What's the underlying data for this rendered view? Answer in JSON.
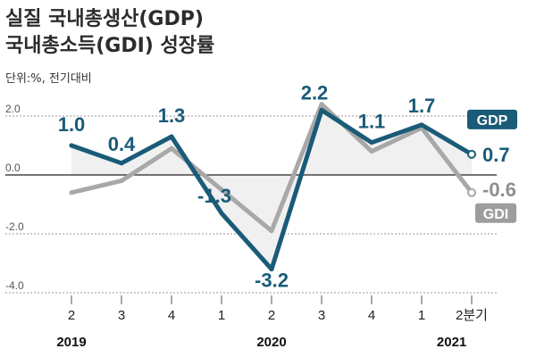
{
  "chart_data": {
    "type": "line",
    "title": [
      "실질 국내총생산(GDP)",
      "국내총소득(GDI) 성장률"
    ],
    "unit_label": "단위:%, 전기대비",
    "categories": [
      "2",
      "3",
      "4",
      "1",
      "2",
      "3",
      "4",
      "1",
      "2분기"
    ],
    "year_labels": [
      {
        "label": "2019",
        "index": 0
      },
      {
        "label": "2020",
        "index": 4
      },
      {
        "label": "2021",
        "index": 7.6
      }
    ],
    "ylim": [
      -4.0,
      2.0
    ],
    "yticks": [
      2.0,
      0.0,
      -2.0,
      -4.0
    ],
    "ytick_labels": [
      "2.0",
      "0.0",
      "-2.0",
      "-4.0"
    ],
    "grid": true,
    "colors": {
      "gdp": "#1a5b78",
      "gdi": "#a8a8a8",
      "fill": "#f0f0f0"
    },
    "series": [
      {
        "name": "GDP",
        "values": [
          1.0,
          0.4,
          1.3,
          -1.3,
          -3.2,
          2.2,
          1.1,
          1.7,
          0.7
        ],
        "labels": [
          "1.0",
          "0.4",
          "1.3",
          "-1.3",
          "-3.2",
          "2.2",
          "1.1",
          "1.7",
          "0.7"
        ]
      },
      {
        "name": "GDI",
        "values": [
          -0.6,
          -0.2,
          0.9,
          -0.5,
          -1.9,
          2.4,
          0.8,
          1.6,
          -0.6
        ],
        "labels": [
          "",
          "",
          "",
          "",
          "",
          "",
          "",
          "",
          "-0.6"
        ]
      }
    ]
  }
}
